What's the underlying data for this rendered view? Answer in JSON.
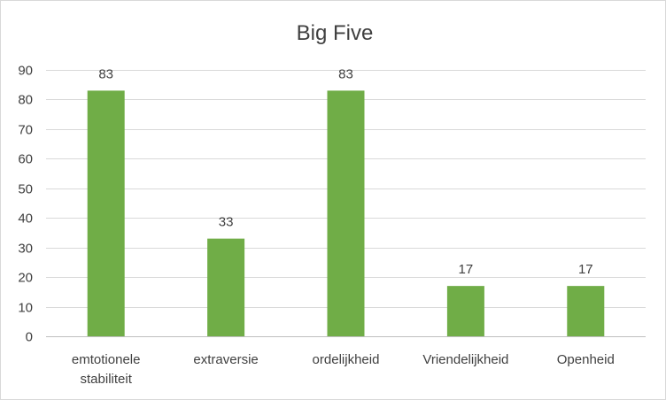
{
  "chart_data": {
    "type": "bar",
    "title": "Big Five",
    "xlabel": "",
    "ylabel": "",
    "categories": [
      [
        "emtotionele",
        "stabiliteit"
      ],
      [
        "extraversie"
      ],
      [
        "ordelijkheid"
      ],
      [
        "Vriendelijkheid"
      ],
      [
        "Openheid"
      ]
    ],
    "values": [
      83,
      33,
      83,
      17,
      17
    ],
    "ylim": [
      0,
      90
    ],
    "yticks": [
      0,
      10,
      20,
      30,
      40,
      50,
      60,
      70,
      80,
      90
    ],
    "grid": true,
    "legend": "none",
    "bar_color": "#70ad47"
  }
}
